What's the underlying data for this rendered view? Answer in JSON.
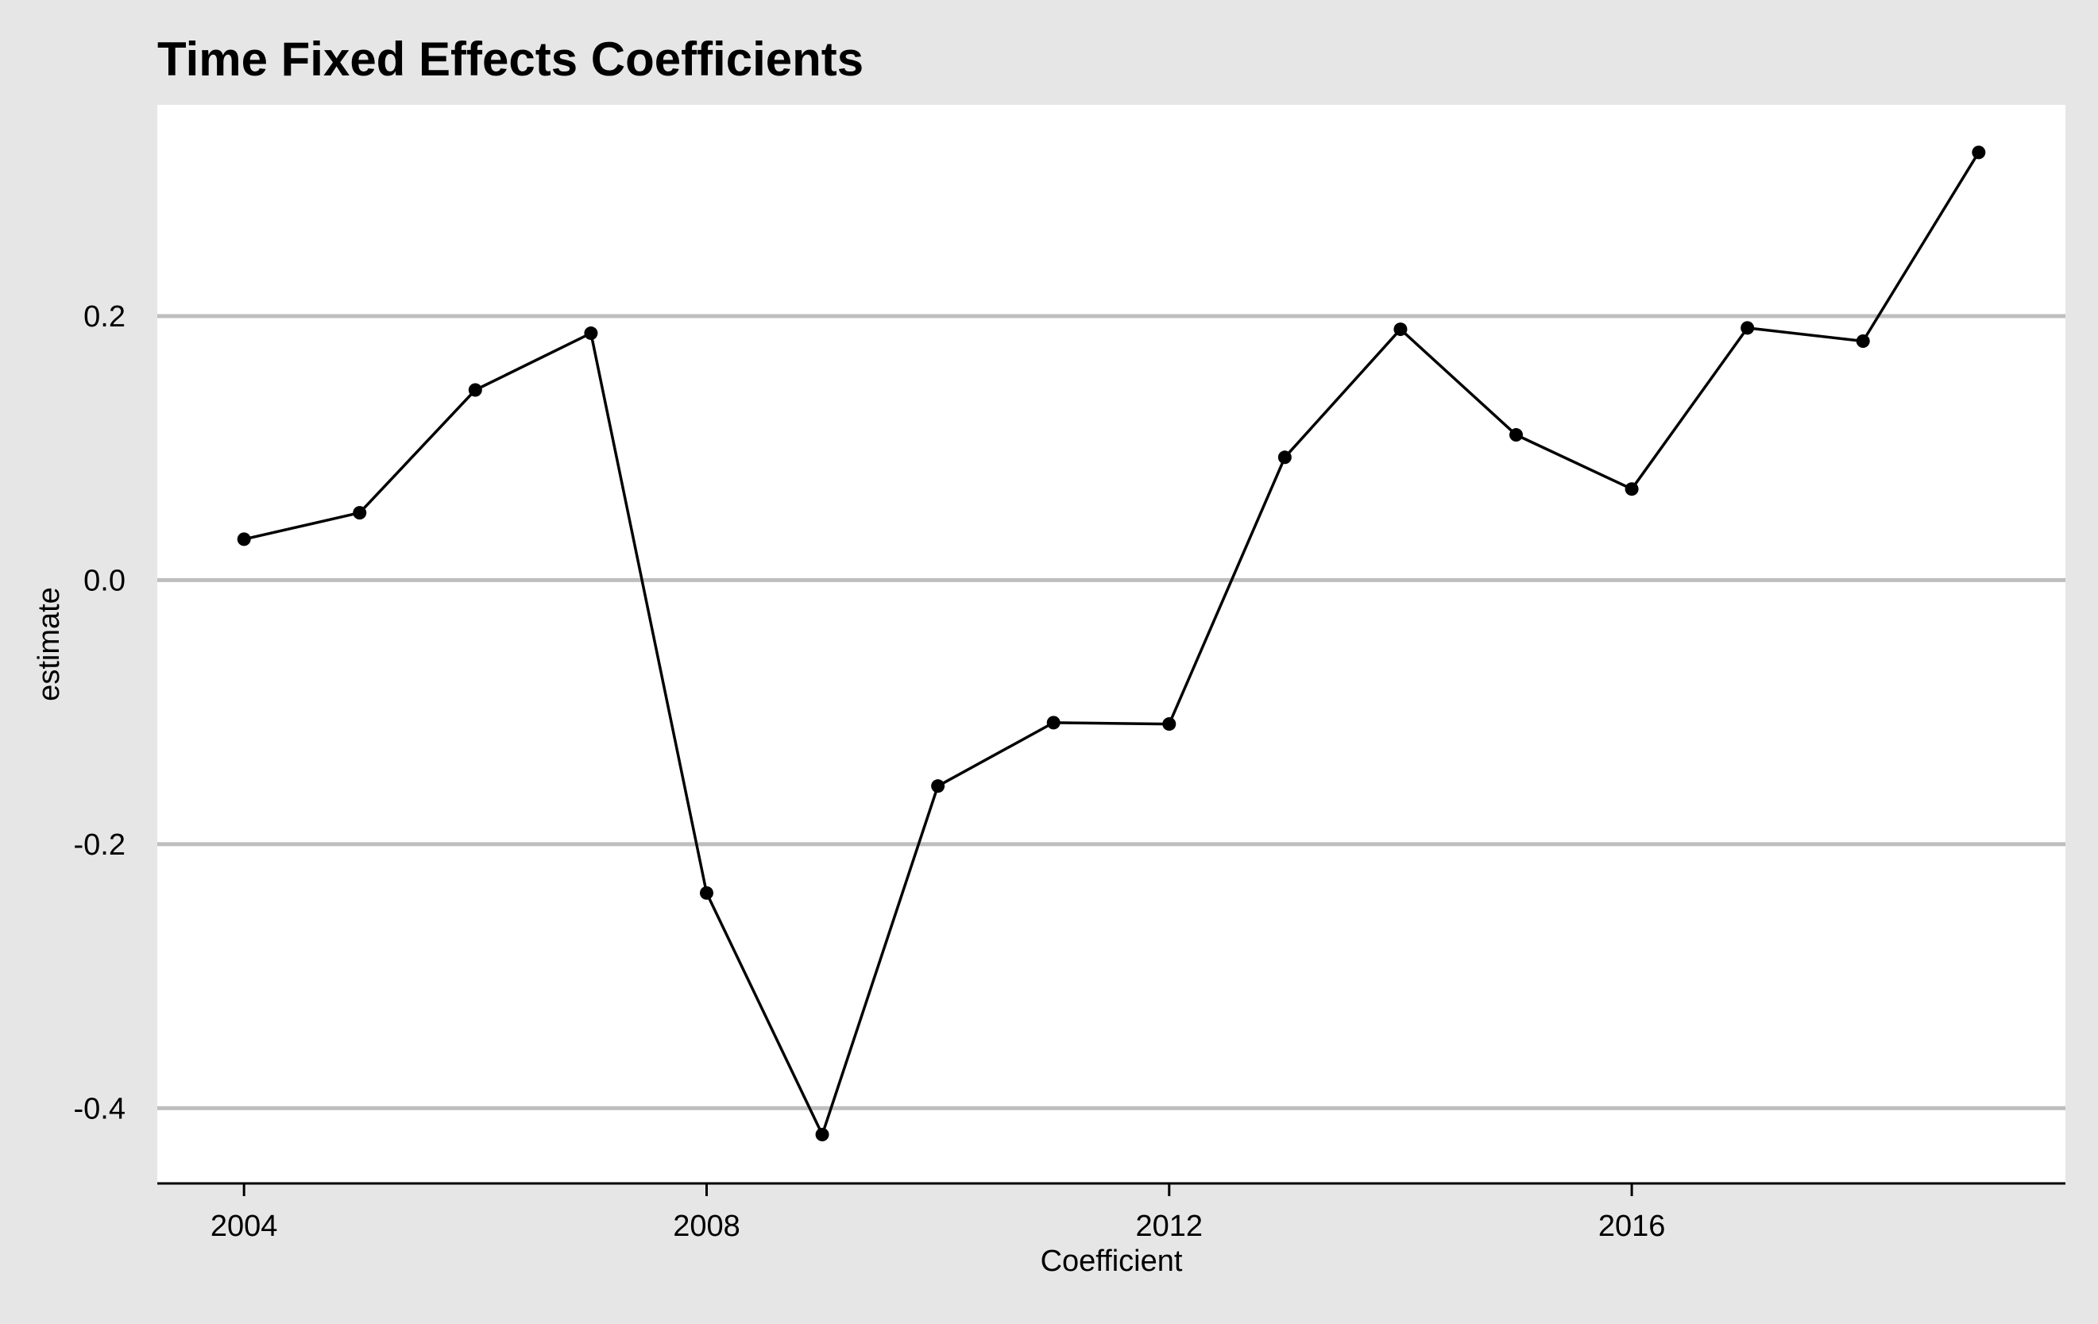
{
  "chart_data": {
    "type": "line",
    "title": "Time Fixed Effects Coefficients",
    "xlabel": "Coefficient",
    "ylabel": "estimate",
    "xlim": [
      2003.25,
      2019.75
    ],
    "ylim": [
      -0.457,
      0.36
    ],
    "x_ticks": [
      2004,
      2008,
      2012,
      2016
    ],
    "x_tick_labels": [
      "2004",
      "2008",
      "2012",
      "2016"
    ],
    "y_ticks": [
      -0.4,
      -0.2,
      0.0,
      0.2
    ],
    "y_tick_labels": [
      "-0.4",
      "-0.2",
      "0.0",
      "0.2"
    ],
    "grid": {
      "horizontal": true,
      "vertical": false
    },
    "legend": "none",
    "series": [
      {
        "x": [
          2004,
          2005,
          2006,
          2007,
          2008,
          2009,
          2010,
          2011,
          2012,
          2013,
          2014,
          2015,
          2016,
          2017,
          2018,
          2019
        ],
        "values": [
          0.031,
          0.051,
          0.144,
          0.187,
          -0.237,
          -0.42,
          -0.156,
          -0.108,
          -0.109,
          0.093,
          0.19,
          0.11,
          0.069,
          0.191,
          0.181,
          0.324
        ]
      }
    ],
    "colors": {
      "background": "#e6e6e6",
      "panel": "#ffffff",
      "grid": "#bebebe",
      "line": "#000000",
      "point": "#000000"
    }
  }
}
